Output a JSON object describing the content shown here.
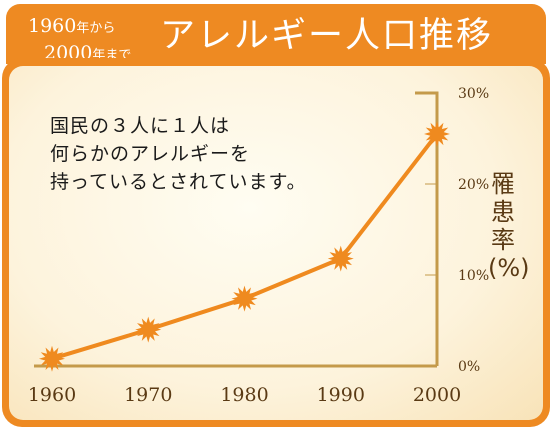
{
  "header": {
    "year_from": "1960",
    "year_from_suffix": "年から",
    "year_to": "2000",
    "year_to_suffix": "年まで",
    "title": "アレルギー人口推移"
  },
  "note": {
    "line1": "国民の３人に１人は",
    "line2": "何らかのアレルギーを",
    "line3": "持っているとされています。"
  },
  "colors": {
    "orange": "#ee8a22",
    "line": "#ef8a1f",
    "axis": "#c49a4a",
    "text_brown": "#5a3a14"
  },
  "chart_data": {
    "type": "line",
    "title": "アレルギー人口推移",
    "ylabel": "罹患率(%)",
    "xlabel": "",
    "x": [
      "1960",
      "1970",
      "1980",
      "1990",
      "2000"
    ],
    "series": [
      {
        "values": [
          0.8,
          4.0,
          7.4,
          11.8,
          25.5
        ]
      }
    ],
    "ylim": [
      0,
      30
    ],
    "y_ticks": [
      0,
      10,
      20,
      30
    ],
    "y_tick_labels": [
      "0%",
      "10%",
      "20%",
      "30%"
    ],
    "grid": false,
    "legend": "none"
  }
}
